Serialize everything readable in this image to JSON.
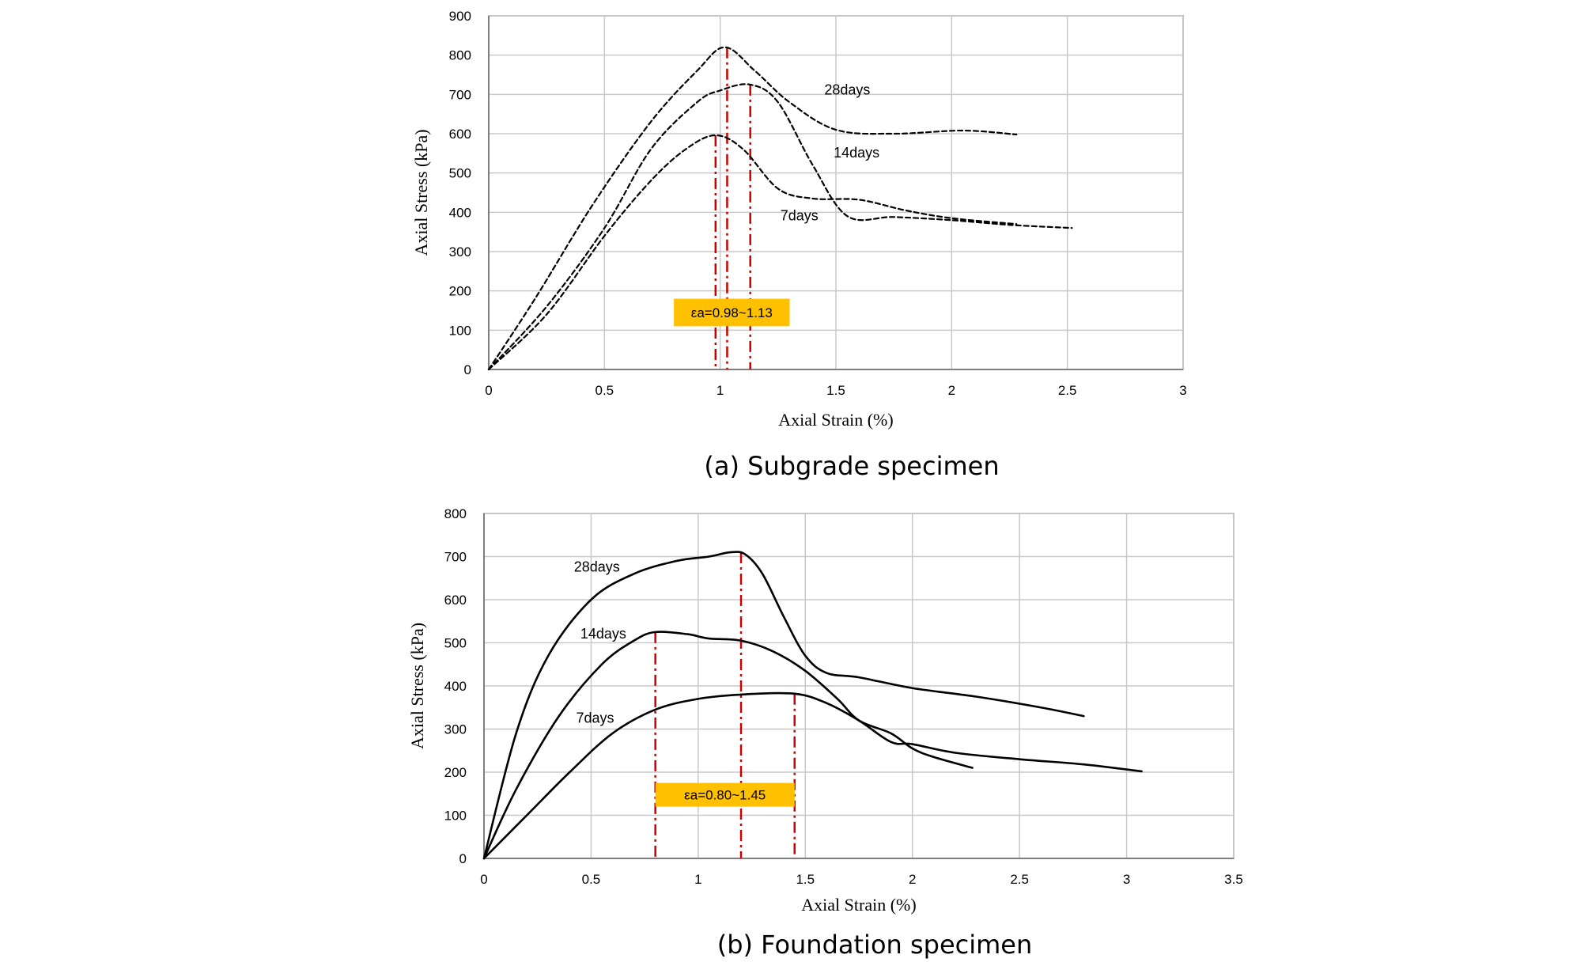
{
  "colors": {
    "curve": "#000000",
    "grid": "#c8c8c8",
    "axis": "#7f7f7f",
    "peak_marker": "#cc0000",
    "annotation_fill": "#ffc000"
  },
  "chart_data": [
    {
      "type": "line",
      "caption": "(a) Subgrade specimen",
      "xlabel": "Axial Strain (%)",
      "ylabel": "Axial Stress (kPa)",
      "xlim": [
        0,
        3
      ],
      "ylim": [
        0,
        900
      ],
      "xticks": [
        0,
        0.5,
        1,
        1.5,
        2,
        2.5,
        3
      ],
      "xtick_labels": [
        "0",
        "0.5",
        "1",
        "1.5",
        "2",
        "2.5",
        "3"
      ],
      "yticks": [
        0,
        100,
        200,
        300,
        400,
        500,
        600,
        700,
        800,
        900
      ],
      "ytick_labels": [
        "0",
        "100",
        "200",
        "300",
        "400",
        "500",
        "600",
        "700",
        "800",
        "900"
      ],
      "grid": true,
      "line_style": "dashed",
      "series": [
        {
          "name": "28days",
          "x": [
            0,
            0.2,
            0.45,
            0.7,
            0.9,
            1.02,
            1.15,
            1.3,
            1.5,
            1.75,
            2.05,
            2.28
          ],
          "y": [
            0,
            180,
            420,
            630,
            760,
            820,
            760,
            680,
            610,
            600,
            608,
            598
          ]
        },
        {
          "name": "14days",
          "x": [
            0,
            0.25,
            0.5,
            0.7,
            0.9,
            1.0,
            1.13,
            1.25,
            1.4,
            1.55,
            1.75,
            2.0,
            2.25,
            2.52
          ],
          "y": [
            0,
            160,
            360,
            560,
            680,
            710,
            725,
            680,
            520,
            390,
            388,
            380,
            368,
            360
          ]
        },
        {
          "name": "7days",
          "x": [
            0,
            0.25,
            0.5,
            0.7,
            0.85,
            0.98,
            1.1,
            1.25,
            1.4,
            1.6,
            1.8,
            2.0,
            2.28
          ],
          "y": [
            0,
            140,
            340,
            480,
            560,
            596,
            560,
            460,
            435,
            432,
            405,
            385,
            370
          ]
        }
      ],
      "label_positions": [
        {
          "text": "28days",
          "x": 1.45,
          "y": 700
        },
        {
          "text": "14days",
          "x": 1.49,
          "y": 540
        },
        {
          "text": "7days",
          "x": 1.26,
          "y": 380
        }
      ],
      "peak_lines": [
        {
          "x": 0.98,
          "y": 596
        },
        {
          "x": 1.03,
          "y": 820
        },
        {
          "x": 1.13,
          "y": 725
        }
      ],
      "annotation": {
        "text": "εa=0.98~1.13",
        "x0": 0.8,
        "x1": 1.3,
        "y0": 110,
        "y1": 180
      }
    },
    {
      "type": "line",
      "caption": "(b) Foundation specimen",
      "xlabel": "Axial Strain (%)",
      "ylabel": "Axial Stress (kPa)",
      "xlim": [
        0,
        3.5
      ],
      "ylim": [
        0,
        800
      ],
      "xticks": [
        0,
        0.5,
        1,
        1.5,
        2,
        2.5,
        3,
        3.5
      ],
      "xtick_labels": [
        "0",
        "0.5",
        "1",
        "1.5",
        "2",
        "2.5",
        "3",
        "3.5"
      ],
      "yticks": [
        0,
        100,
        200,
        300,
        400,
        500,
        600,
        700,
        800
      ],
      "ytick_labels": [
        "0",
        "100",
        "200",
        "300",
        "400",
        "500",
        "600",
        "700",
        "800"
      ],
      "grid": true,
      "line_style": "solid",
      "series": [
        {
          "name": "28days",
          "x": [
            0,
            0.15,
            0.3,
            0.5,
            0.7,
            0.9,
            1.05,
            1.15,
            1.22,
            1.3,
            1.4,
            1.5,
            1.6,
            1.75,
            2.0,
            2.3,
            2.6,
            2.8
          ],
          "y": [
            0,
            290,
            470,
            600,
            660,
            690,
            700,
            710,
            705,
            660,
            560,
            470,
            430,
            420,
            395,
            375,
            350,
            330
          ]
        },
        {
          "name": "14days",
          "x": [
            0,
            0.15,
            0.35,
            0.55,
            0.7,
            0.8,
            0.95,
            1.05,
            1.2,
            1.35,
            1.5,
            1.65,
            1.75,
            1.9,
            2.0,
            2.1,
            2.28
          ],
          "y": [
            0,
            160,
            330,
            450,
            505,
            525,
            520,
            510,
            505,
            480,
            435,
            370,
            320,
            290,
            255,
            235,
            210
          ]
        },
        {
          "name": "7days",
          "x": [
            0,
            0.2,
            0.4,
            0.6,
            0.8,
            1.0,
            1.2,
            1.45,
            1.6,
            1.75,
            1.9,
            2.0,
            2.2,
            2.5,
            2.8,
            3.07
          ],
          "y": [
            0,
            100,
            200,
            290,
            345,
            370,
            380,
            382,
            360,
            320,
            270,
            265,
            245,
            230,
            218,
            202
          ]
        }
      ],
      "label_positions": [
        {
          "text": "28days",
          "x": 0.42,
          "y": 665
        },
        {
          "text": "14days",
          "x": 0.45,
          "y": 510
        },
        {
          "text": "7days",
          "x": 0.43,
          "y": 315
        }
      ],
      "peak_lines": [
        {
          "x": 0.8,
          "y": 525
        },
        {
          "x": 1.2,
          "y": 710
        },
        {
          "x": 1.45,
          "y": 382
        }
      ],
      "annotation": {
        "text": "εa=0.80~1.45",
        "x0": 0.8,
        "x1": 1.45,
        "y0": 120,
        "y1": 175
      }
    }
  ]
}
